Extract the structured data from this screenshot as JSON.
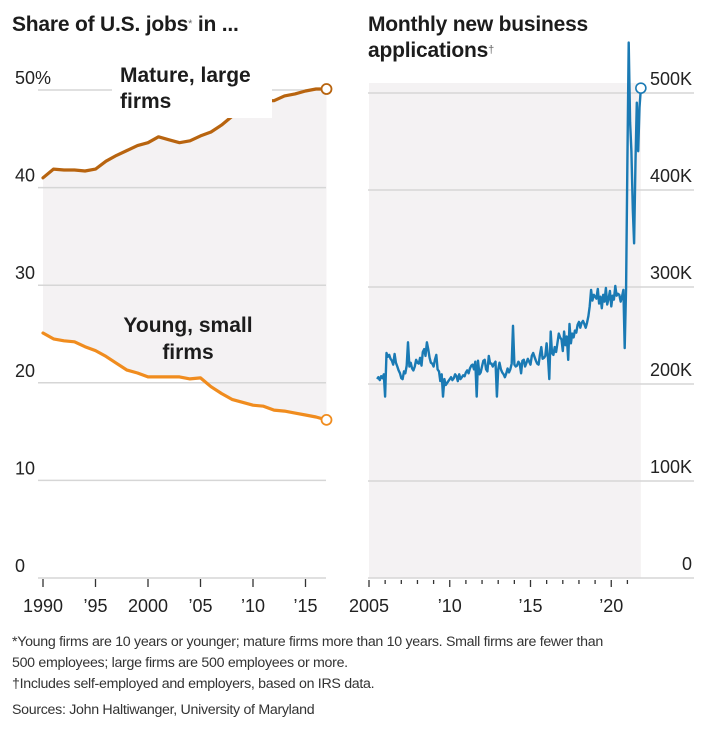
{
  "chart_data": [
    {
      "type": "line",
      "title": "Share of U.S. jobs* in ...",
      "title_main": "Share of U.S. jobs",
      "title_mark": "*",
      "title_suffix": " in ...",
      "xlabel": "",
      "ylabel": "",
      "ylim": [
        0,
        50
      ],
      "xlim": [
        1990,
        2017
      ],
      "yticks": [
        0,
        10,
        20,
        30,
        40,
        50
      ],
      "ytick_labels": [
        "0",
        "10",
        "20",
        "30",
        "40",
        "50%"
      ],
      "xticks": [
        1990,
        1995,
        2000,
        2005,
        2010,
        2015
      ],
      "xtick_labels": [
        "1990",
        "’95",
        "2000",
        "’05",
        "’10",
        "’15"
      ],
      "grid": true,
      "shaded_between_series": true,
      "x": [
        1990,
        1991,
        1992,
        1993,
        1994,
        1995,
        1996,
        1997,
        1998,
        1999,
        2000,
        2001,
        2002,
        2003,
        2004,
        2005,
        2006,
        2007,
        2008,
        2009,
        2010,
        2011,
        2012,
        2013,
        2014,
        2015,
        2016,
        2017
      ],
      "series": [
        {
          "name": "Mature, large firms",
          "label_lines": [
            "Mature, large",
            "firms"
          ],
          "color": "#b8640f",
          "values": [
            41.0,
            41.9,
            41.8,
            41.8,
            41.7,
            41.9,
            42.7,
            43.3,
            43.8,
            44.3,
            44.6,
            45.2,
            44.9,
            44.6,
            44.8,
            45.3,
            45.7,
            46.4,
            47.3,
            48.3,
            48.4,
            48.9,
            48.9,
            49.4,
            49.6,
            49.9,
            50.1,
            50.1
          ]
        },
        {
          "name": "Young, small firms",
          "label_lines": [
            "Young, small",
            "firms"
          ],
          "color": "#f08c1e",
          "values": [
            25.1,
            24.5,
            24.3,
            24.2,
            23.7,
            23.3,
            22.7,
            22.0,
            21.3,
            21.0,
            20.6,
            20.6,
            20.6,
            20.6,
            20.4,
            20.5,
            19.6,
            18.9,
            18.3,
            18.0,
            17.7,
            17.6,
            17.2,
            17.1,
            16.9,
            16.7,
            16.5,
            16.2
          ]
        }
      ]
    },
    {
      "type": "area",
      "title": "Monthly new business applications†",
      "title_main_line1": "Monthly new business",
      "title_main_line2": "applications",
      "title_mark": "†",
      "xlabel": "",
      "ylabel": "",
      "ylim": [
        0,
        500000
      ],
      "xlim": [
        2005.0,
        2021.5
      ],
      "yticks": [
        0,
        100000,
        200000,
        300000,
        400000,
        500000
      ],
      "ytick_labels": [
        "0",
        "100K",
        "200K",
        "300K",
        "400K",
        "500K"
      ],
      "xticks": [
        2005,
        2010,
        2015,
        2020
      ],
      "xtick_labels": [
        "2005",
        "’10",
        "’15",
        "’20"
      ],
      "minor_xticks": "yearly",
      "grid": true,
      "series": [
        {
          "name": "Monthly new business applications",
          "color": "#1a7ab4",
          "start": "2005-07",
          "frequency": "monthly",
          "values": [
            205000,
            207000,
            204000,
            208000,
            206000,
            210000,
            187000,
            232000,
            228000,
            230000,
            226000,
            224000,
            220000,
            231000,
            222000,
            218000,
            214000,
            211000,
            206000,
            205000,
            213000,
            211000,
            219000,
            243000,
            218000,
            222000,
            216000,
            214000,
            218000,
            225000,
            222000,
            221000,
            227000,
            219000,
            233000,
            236000,
            229000,
            243000,
            236000,
            227000,
            222000,
            221000,
            218000,
            225000,
            230000,
            215000,
            213000,
            203000,
            210000,
            187000,
            205000,
            199000,
            201000,
            203000,
            205000,
            207000,
            204000,
            206000,
            210000,
            208000,
            203000,
            210000,
            205000,
            207000,
            209000,
            208000,
            212000,
            214000,
            211000,
            216000,
            219000,
            220000,
            215000,
            223000,
            187000,
            224000,
            210000,
            212000,
            218000,
            224000,
            225000,
            215000,
            213000,
            229000,
            221000,
            221000,
            218000,
            221000,
            223000,
            187000,
            215000,
            222000,
            215000,
            212000,
            210000,
            207000,
            211000,
            216000,
            212000,
            215000,
            221000,
            260000,
            220000,
            218000,
            219000,
            223000,
            221000,
            211000,
            224000,
            225000,
            218000,
            222000,
            226000,
            223000,
            220000,
            229000,
            232000,
            228000,
            224000,
            221000,
            220000,
            230000,
            238000,
            226000,
            227000,
            229000,
            242000,
            227000,
            205000,
            254000,
            232000,
            230000,
            238000,
            233000,
            242000,
            252000,
            248000,
            246000,
            234000,
            254000,
            240000,
            249000,
            225000,
            262000,
            242000,
            252000,
            248000,
            255000,
            253000,
            261000,
            264000,
            258000,
            263000,
            265000,
            262000,
            258000,
            263000,
            270000,
            280000,
            297000,
            286000,
            292000,
            290000,
            288000,
            298000,
            283000,
            290000,
            278000,
            292000,
            285000,
            299000,
            282000,
            288000,
            296000,
            280000,
            291000,
            287000,
            301000,
            291000,
            293000,
            292000,
            285000,
            290000,
            297000,
            237000,
            300000,
            430000,
            552000,
            470000,
            440000,
            380000,
            345000,
            430000,
            490000,
            440000,
            485000,
            505000
          ]
        }
      ]
    }
  ],
  "notes": {
    "line1": "*Young firms are 10 years or younger; mature firms more than 10 years. Small firms are fewer than",
    "line2": "500 employees; large firms are 500 employees or more.",
    "line3": "†Includes self-employed and employers, based on IRS data.",
    "source": "Sources: John Haltiwanger, University of Maryland"
  },
  "colors": {
    "shade": "#f4f2f3",
    "grid": "#d6d6d6",
    "mature": "#b8640f",
    "young": "#f08c1e",
    "applications": "#1a7ab4"
  }
}
